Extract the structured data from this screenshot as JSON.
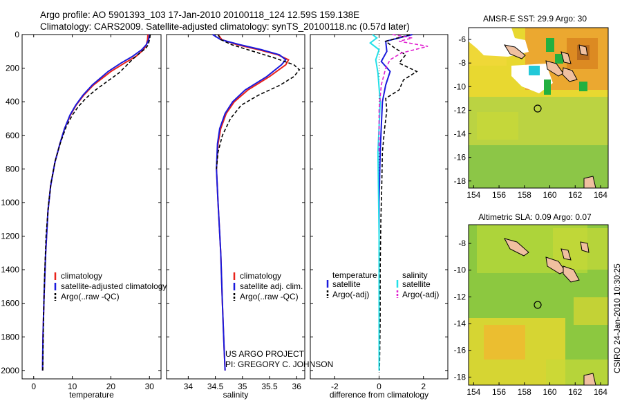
{
  "header": {
    "line1": "Argo profile: AO 5901393_103 17-Jan-2010 20100118_124 12.59S 159.138E",
    "line2": "Climatology: CARS2009. Satellite-adjusted climatology: synTS_20100118.nc (0.57d later)"
  },
  "colors": {
    "climatology": "#e8231b",
    "satellite": "#1a1adc",
    "argo": "#000000",
    "salinity_sat": "#22e0e8",
    "salinity_argo": "#e020d0",
    "sea_sst": "#e8d830",
    "land": "#f0c0a0"
  },
  "credits": {
    "project": "US ARGO PROJECT",
    "pi": "PI: GREGORY C. JOHNSON",
    "stamp": "CSIRO 24-Jan-2010 10:30:25"
  },
  "maps": [
    {
      "title": "AMSR-E SST: 29.9  Argo: 30",
      "x_ticks": [
        "154",
        "156",
        "158",
        "160",
        "162",
        "164"
      ],
      "y_ticks": [
        "-6",
        "-8",
        "-10",
        "-12",
        "-14",
        "-16",
        "-18"
      ]
    },
    {
      "title": "Altimetric SLA: 0.09  Argo: 0.07",
      "x_ticks": [
        "154",
        "156",
        "158",
        "160",
        "162",
        "164"
      ],
      "y_ticks": [
        "-8",
        "-10",
        "-12",
        "-14",
        "-16",
        "-18"
      ]
    }
  ],
  "chart_data": [
    {
      "type": "line",
      "xlabel": "temperature",
      "xlim": [
        -3,
        33
      ],
      "ylim": [
        2050,
        0
      ],
      "x_ticks": [
        0,
        10,
        20,
        30
      ],
      "y_ticks": [
        0,
        200,
        400,
        600,
        800,
        1000,
        1200,
        1400,
        1600,
        1800,
        2000
      ],
      "legend": [
        "climatology",
        "satellite-adjusted climatology",
        "Argo(..raw -QC)"
      ],
      "series": [
        {
          "name": "climatology",
          "color": "#e8231b",
          "style": "solid",
          "x": [
            29.6,
            29.5,
            29.2,
            28.5,
            26.5,
            23.5,
            20,
            15.5,
            13,
            11,
            9.5,
            8,
            6.8,
            5.5,
            4.4,
            3.7,
            3.1,
            2.7,
            2.4,
            2.3
          ],
          "y": [
            0,
            30,
            60,
            90,
            130,
            170,
            220,
            300,
            360,
            420,
            480,
            560,
            650,
            760,
            900,
            1050,
            1300,
            1550,
            1800,
            2000
          ]
        },
        {
          "name": "satellite-adjusted climatology",
          "color": "#1a1adc",
          "style": "solid",
          "x": [
            30.0,
            29.8,
            29.2,
            28.0,
            25.6,
            22.6,
            19.3,
            15.2,
            12.8,
            10.9,
            9.4,
            8.0,
            6.8,
            5.5,
            4.4,
            3.7,
            3.1,
            2.7,
            2.4,
            2.3
          ],
          "y": [
            0,
            30,
            60,
            90,
            130,
            170,
            220,
            300,
            360,
            420,
            480,
            560,
            650,
            760,
            900,
            1050,
            1300,
            1550,
            1800,
            2000
          ]
        },
        {
          "name": "Argo(..raw -QC)",
          "color": "#000000",
          "style": "dashed",
          "x": [
            30.2,
            30.1,
            29.9,
            29.7,
            29.1,
            27.5,
            25.5,
            23.8,
            22,
            19,
            16,
            13.5,
            11.5,
            10,
            8.4,
            7,
            5.6,
            4.5,
            3.8,
            3.2,
            2.8,
            2.5,
            2.35
          ],
          "y": [
            0,
            20,
            40,
            60,
            80,
            110,
            150,
            190,
            230,
            280,
            330,
            380,
            430,
            480,
            550,
            640,
            750,
            880,
            1020,
            1200,
            1450,
            1750,
            2000
          ]
        }
      ]
    },
    {
      "type": "line",
      "xlabel": "salinity",
      "xlim": [
        33.6,
        36.15
      ],
      "ylim": [
        2050,
        0
      ],
      "x_ticks": [
        34,
        34.5,
        35,
        35.5,
        36
      ],
      "legend": [
        "climatology",
        "satellite adj. clim.",
        "Argo(..raw -QC)"
      ],
      "series": [
        {
          "name": "climatology",
          "color": "#e8231b",
          "style": "solid",
          "x": [
            34.55,
            34.62,
            34.9,
            35.3,
            35.65,
            35.85,
            35.8,
            35.5,
            35.1,
            34.85,
            34.7,
            34.6,
            34.55,
            34.52,
            34.55,
            34.6,
            34.63,
            34.66,
            34.68
          ],
          "y": [
            0,
            30,
            60,
            90,
            120,
            150,
            180,
            250,
            330,
            400,
            470,
            560,
            650,
            800,
            1000,
            1300,
            1600,
            1850,
            2000
          ]
        },
        {
          "name": "satellite adj. clim.",
          "color": "#1a1adc",
          "style": "solid",
          "x": [
            34.45,
            34.6,
            34.95,
            35.35,
            35.68,
            35.8,
            35.72,
            35.45,
            35.05,
            34.82,
            34.68,
            34.58,
            34.54,
            34.52,
            34.55,
            34.6,
            34.63,
            34.66,
            34.68
          ],
          "y": [
            0,
            30,
            60,
            90,
            120,
            150,
            180,
            250,
            330,
            400,
            470,
            560,
            650,
            800,
            1000,
            1300,
            1600,
            1850,
            2000
          ]
        },
        {
          "name": "Argo(..raw -QC)",
          "color": "#000000",
          "style": "dashed",
          "x": [
            34.55,
            34.6,
            34.8,
            35.2,
            35.6,
            35.95,
            36.05,
            35.95,
            35.7,
            35.3,
            34.98,
            34.78,
            34.63,
            34.55,
            34.52
          ],
          "y": [
            0,
            30,
            60,
            100,
            140,
            180,
            210,
            250,
            300,
            360,
            420,
            500,
            600,
            700,
            800
          ]
        }
      ]
    },
    {
      "type": "line",
      "xlabel": "difference from climatology",
      "xlim": [
        -3.1,
        3.1
      ],
      "ylim": [
        2050,
        0
      ],
      "x_ticks": [
        -2,
        0,
        2
      ],
      "legend": [
        "temperature",
        "satellite",
        "Argo(-adj)",
        "salinity",
        "satellite",
        "Argo(-adj)"
      ],
      "series": [
        {
          "name": "satellite",
          "color": "#1a1adc",
          "style": "solid",
          "x": [
            1.5,
            0.3,
            0.35,
            0.1,
            0.5,
            0.3,
            0.15,
            0.1,
            0.05,
            0.0,
            0.0
          ],
          "y": [
            0,
            40,
            100,
            160,
            220,
            300,
            400,
            550,
            700,
            1000,
            2000
          ]
        },
        {
          "name": "Argo(-adj)",
          "color": "#000000",
          "style": "dashed",
          "x": [
            1.4,
            0.3,
            0.7,
            1.2,
            0.9,
            1.7,
            1.1,
            0.9,
            0.3,
            0.35,
            0.25,
            0.15,
            0.12,
            0.08,
            0.05,
            0.05,
            0.02
          ],
          "y": [
            0,
            40,
            80,
            120,
            170,
            220,
            270,
            330,
            380,
            450,
            560,
            700,
            900,
            1100,
            1400,
            1700,
            2000
          ]
        },
        {
          "name": "satellite",
          "color": "#22e0e8",
          "style": "solid",
          "x": [
            -0.3,
            -0.1,
            -0.4,
            0.0,
            -0.15,
            -0.05,
            0.05,
            -0.05,
            0.0,
            0.0
          ],
          "y": [
            0,
            20,
            50,
            90,
            150,
            230,
            400,
            700,
            1200,
            2000
          ]
        },
        {
          "name": "Argo(-adj)",
          "color": "#e020d0",
          "style": "dashed",
          "x": [
            0.6,
            1.5,
            0.9,
            2.2,
            1.0,
            0.5,
            0.3,
            0.1,
            0.0,
            0.0
          ],
          "y": [
            0,
            20,
            40,
            70,
            110,
            150,
            200,
            300,
            450,
            700
          ]
        }
      ]
    }
  ]
}
